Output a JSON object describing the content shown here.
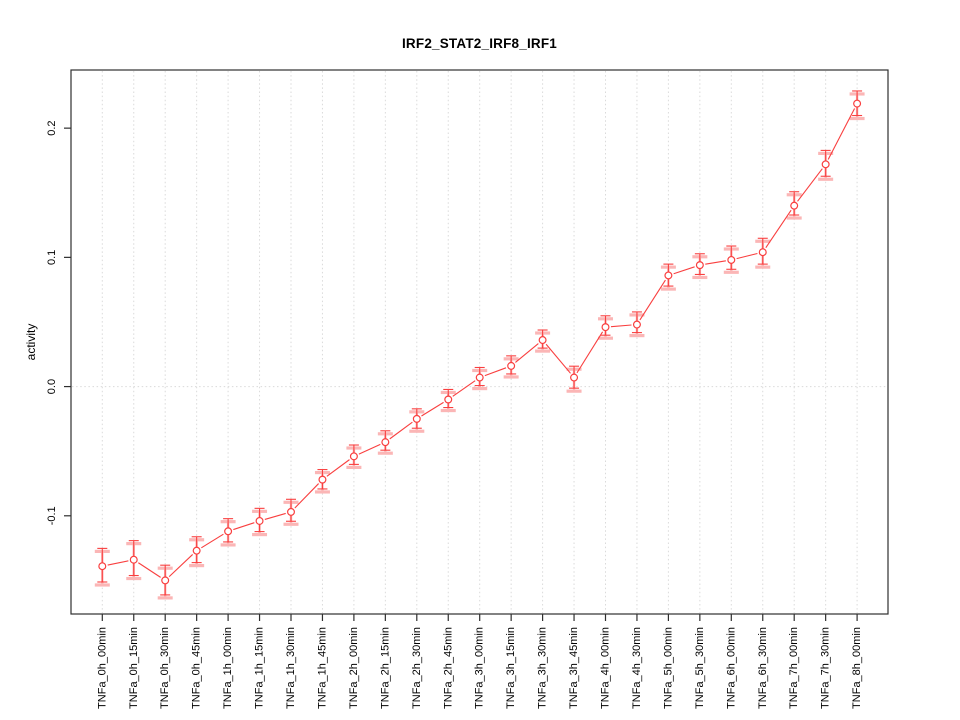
{
  "figure": {
    "title": "IRF2_STAT2_IRF8_IRF1",
    "ylabel": "activity"
  },
  "chart_data": {
    "type": "line",
    "title": "IRF2_STAT2_IRF8_IRF1",
    "xlabel": "",
    "ylabel": "activity",
    "marker": "open-circle",
    "legend": "none",
    "categories": [
      "TNFa_0h_00min",
      "TNFa_0h_15min",
      "TNFa_0h_30min",
      "TNFa_0h_45min",
      "TNFa_1h_00min",
      "TNFa_1h_15min",
      "TNFa_1h_30min",
      "TNFa_1h_45min",
      "TNFa_2h_00min",
      "TNFa_2h_15min",
      "TNFa_2h_30min",
      "TNFa_2h_45min",
      "TNFa_3h_00min",
      "TNFa_3h_15min",
      "TNFa_3h_30min",
      "TNFa_3h_45min",
      "TNFa_4h_00min",
      "TNFa_4h_30min",
      "TNFa_5h_00min",
      "TNFa_5h_30min",
      "TNFa_6h_00min",
      "TNFa_6h_30min",
      "TNFa_7h_00min",
      "TNFa_7h_30min",
      "TNFa_8h_00min"
    ],
    "values": [
      -0.139,
      -0.134,
      -0.15,
      -0.127,
      -0.112,
      -0.104,
      -0.097,
      -0.072,
      -0.054,
      -0.043,
      -0.025,
      -0.01,
      0.007,
      0.016,
      0.036,
      0.007,
      0.046,
      0.048,
      0.086,
      0.094,
      0.098,
      0.104,
      0.14,
      0.172,
      0.219
    ],
    "err_low": [
      -0.152,
      -0.147,
      -0.162,
      -0.137,
      -0.121,
      -0.113,
      -0.105,
      -0.08,
      -0.061,
      -0.05,
      -0.033,
      -0.017,
      0.0,
      0.009,
      0.029,
      -0.002,
      0.039,
      0.041,
      0.077,
      0.086,
      0.09,
      0.094,
      0.132,
      0.162,
      0.209
    ],
    "err_high": [
      -0.126,
      -0.12,
      -0.139,
      -0.117,
      -0.103,
      -0.095,
      -0.088,
      -0.065,
      -0.046,
      -0.035,
      -0.018,
      -0.003,
      0.014,
      0.023,
      0.043,
      0.015,
      0.054,
      0.057,
      0.094,
      0.102,
      0.108,
      0.114,
      0.15,
      0.182,
      0.228
    ],
    "yticks": [
      -0.1,
      0.0,
      0.1,
      0.2
    ],
    "ytick_labels": [
      "-0.1",
      "0.0",
      "0.1",
      "0.2"
    ],
    "ylim": [
      -0.176,
      0.245
    ],
    "grid": {
      "vertical": true,
      "horizontal_at": [
        0
      ],
      "style": "dotted"
    },
    "colors": {
      "line": "#f93f3f",
      "error_caps": "#fbb6b6",
      "grid": "#dadada",
      "frame": "#2f2f2f",
      "text": "#000000"
    }
  }
}
